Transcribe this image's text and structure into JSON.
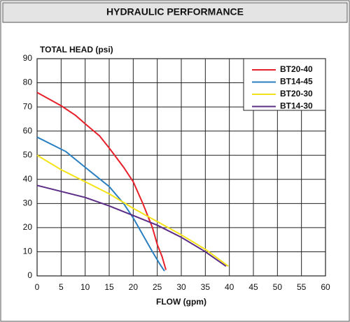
{
  "chart_data": {
    "type": "line",
    "title": "HYDRAULIC PERFORMANCE",
    "y_label": "TOTAL HEAD (psi)",
    "x_label": "FLOW (gpm)",
    "xlim": [
      0,
      60
    ],
    "xticks": [
      0,
      5,
      10,
      15,
      20,
      25,
      30,
      35,
      40,
      45,
      50,
      55,
      60
    ],
    "ylim": [
      0,
      90
    ],
    "yticks": [
      0,
      10,
      20,
      30,
      40,
      50,
      60,
      70,
      80,
      90
    ],
    "grid": true,
    "legend": "top-right",
    "series": [
      {
        "name": "BT20-40",
        "color": "#e8202a",
        "x": [
          0,
          5,
          8,
          10,
          13,
          15,
          18,
          20,
          22,
          24,
          25,
          26,
          26.8
        ],
        "values": [
          76,
          70.5,
          66.5,
          63,
          58,
          53,
          45,
          39,
          30,
          20,
          13,
          8,
          2.5
        ]
      },
      {
        "name": "BT14-45",
        "color": "#2a7fc1",
        "x": [
          0,
          6,
          10,
          15,
          18,
          20,
          22,
          24,
          25.5,
          26.5
        ],
        "values": [
          57.5,
          51.5,
          45,
          37,
          30,
          24,
          17,
          10,
          5,
          2
        ]
      },
      {
        "name": "BT20-30",
        "color": "#f5e31a",
        "x": [
          0,
          5,
          10,
          15,
          20,
          25,
          30,
          35,
          39.8
        ],
        "values": [
          50,
          44,
          39,
          34,
          28,
          22.5,
          17,
          11,
          4
        ]
      },
      {
        "name": "BT14-30",
        "color": "#5b2d86",
        "x": [
          0,
          5,
          10,
          15,
          20,
          25,
          30,
          35,
          39.3
        ],
        "values": [
          37.5,
          35,
          32.5,
          29,
          25,
          21,
          16,
          10,
          4
        ]
      }
    ]
  }
}
